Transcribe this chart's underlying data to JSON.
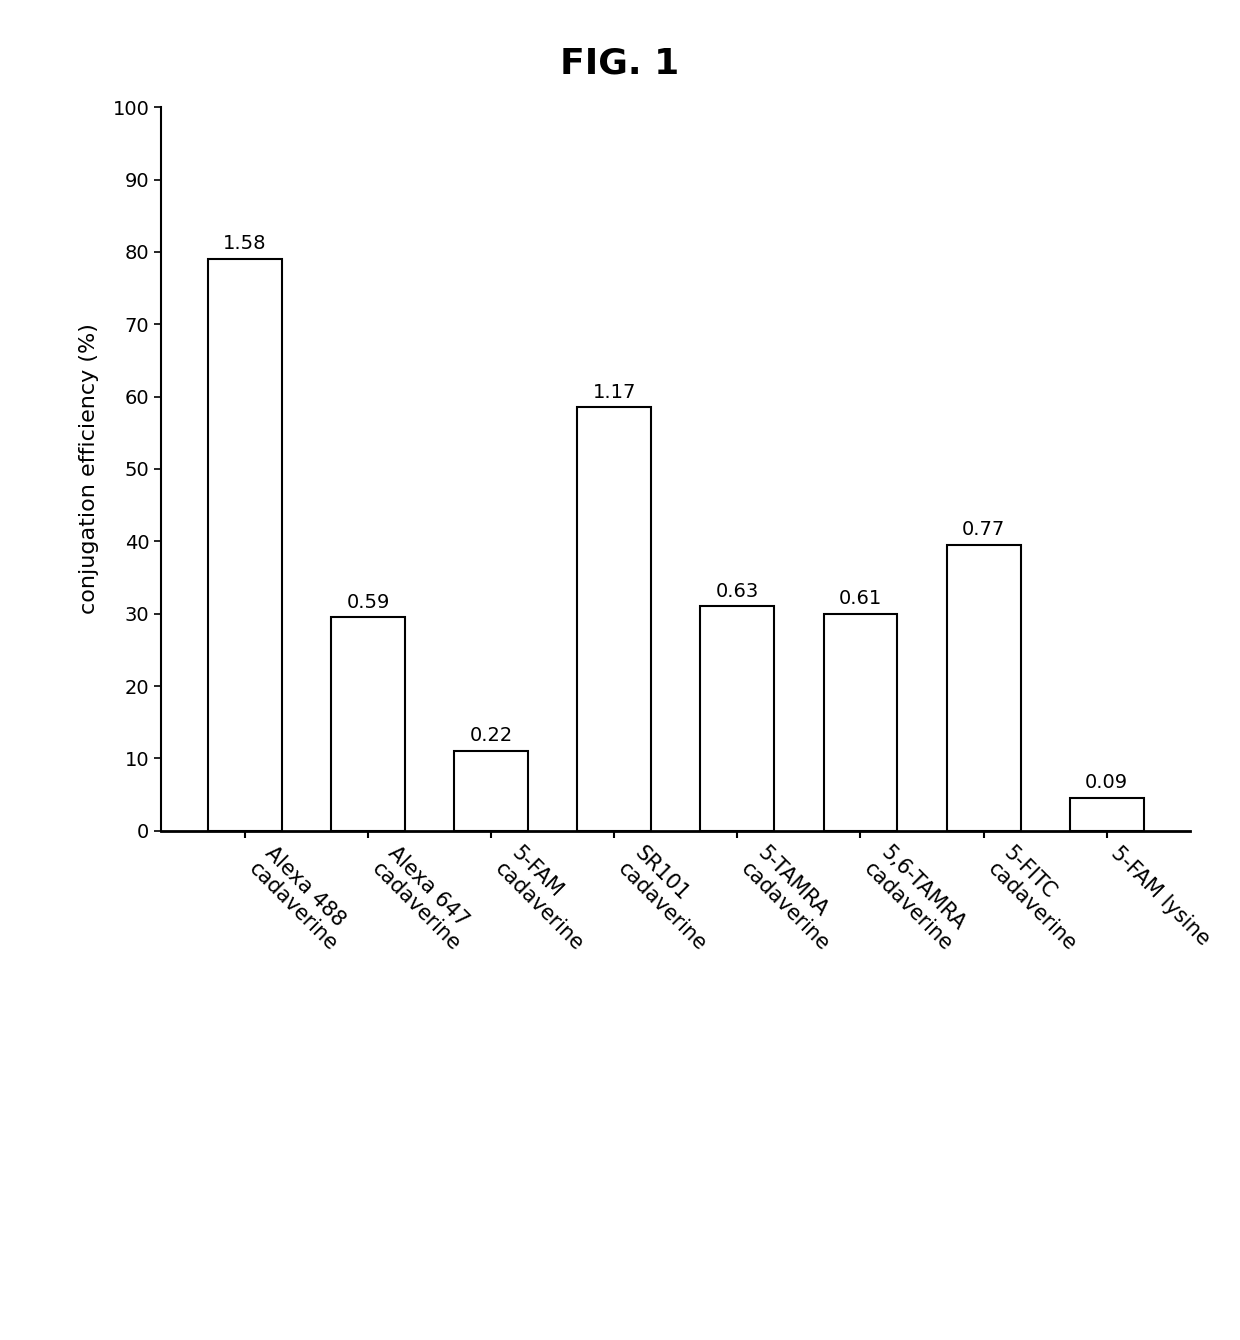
{
  "title": "FIG. 1",
  "categories": [
    "Alexa 488\ncadaverine",
    "Alexa 647\ncadaverine",
    "5-FAM\ncadaverine",
    "SR101\ncadaverine",
    "5-TAMRA\ncadaverine",
    "5,6-TAMRA\ncadaverine",
    "5-FITC\ncadaverine",
    "5-FAM lysine"
  ],
  "values": [
    79.0,
    29.5,
    11.0,
    58.5,
    31.0,
    30.0,
    39.5,
    4.5
  ],
  "labels": [
    "1.58",
    "0.59",
    "0.22",
    "1.17",
    "0.63",
    "0.61",
    "0.77",
    "0.09"
  ],
  "ylabel": "conjugation efficiency (%)",
  "ylim": [
    0,
    100
  ],
  "yticks": [
    0,
    10,
    20,
    30,
    40,
    50,
    60,
    70,
    80,
    90,
    100
  ],
  "bar_color": "#ffffff",
  "bar_edgecolor": "#000000",
  "bar_linewidth": 1.5,
  "title_fontsize": 26,
  "label_fontsize": 15,
  "tick_fontsize": 14,
  "ylabel_fontsize": 16,
  "annotation_fontsize": 14,
  "background_color": "#ffffff"
}
